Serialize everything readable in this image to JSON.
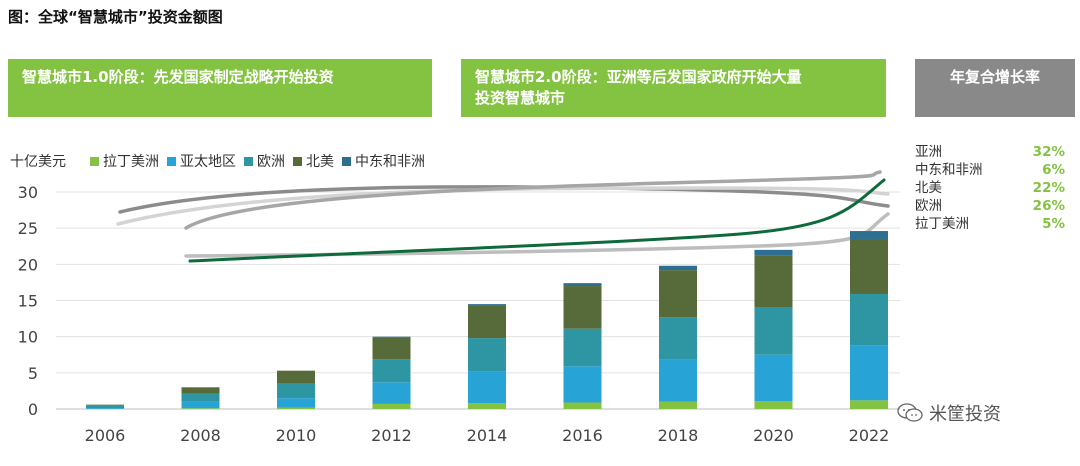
{
  "title": "图：全球“智慧城市”投资金额图",
  "banners": {
    "phase1": "智慧城市1.0阶段：先发国家制定战略开始投资",
    "phase2_line1": "智慧城市2.0阶段：亚洲等后发国家政府开始大量",
    "phase2_line2": "投资智慧城市",
    "cagr_header": "年复合增长率"
  },
  "watermark": "米筐投资",
  "cagr": [
    {
      "region": "亚洲",
      "value": "32%"
    },
    {
      "region": "中东和非洲",
      "value": "6%"
    },
    {
      "region": "北美",
      "value": "22%"
    },
    {
      "region": "欧洲",
      "value": "26%"
    },
    {
      "region": "拉丁美洲",
      "value": "5%"
    }
  ],
  "colors": {
    "latin_america": "#84c341",
    "asia_pacific": "#27a3d6",
    "europe": "#2e95a2",
    "north_america": "#576b3a",
    "mea": "#2c6f91",
    "banner_green": "#84c341",
    "banner_gray": "#898989"
  },
  "chart_data": {
    "type": "bar",
    "stacked": true,
    "ylabel": "十亿美元",
    "ylim": [
      0,
      30
    ],
    "yticks": [
      0,
      5,
      10,
      15,
      20,
      25,
      30
    ],
    "categories": [
      "2006",
      "2008",
      "2010",
      "2012",
      "2014",
      "2016",
      "2018",
      "2020",
      "2022"
    ],
    "series": [
      {
        "name": "拉丁美洲",
        "color": "#84c341",
        "values": [
          0.0,
          0.1,
          0.2,
          0.7,
          0.8,
          0.9,
          1.0,
          1.1,
          1.2
        ]
      },
      {
        "name": "亚太地区",
        "color": "#27a3d6",
        "values": [
          0.1,
          1.0,
          1.3,
          3.0,
          4.4,
          5.0,
          5.9,
          6.4,
          7.6
        ]
      },
      {
        "name": "欧洲",
        "color": "#2e95a2",
        "values": [
          0.4,
          1.0,
          2.0,
          3.2,
          4.6,
          5.2,
          5.8,
          6.6,
          7.1
        ]
      },
      {
        "name": "北美",
        "color": "#576b3a",
        "values": [
          0.1,
          0.9,
          1.8,
          3.0,
          4.5,
          5.9,
          6.5,
          7.1,
          7.6
        ]
      },
      {
        "name": "中东和非洲",
        "color": "#2c6f91",
        "values": [
          0.0,
          0.0,
          0.0,
          0.1,
          0.2,
          0.4,
          0.6,
          0.8,
          1.1
        ]
      }
    ]
  }
}
